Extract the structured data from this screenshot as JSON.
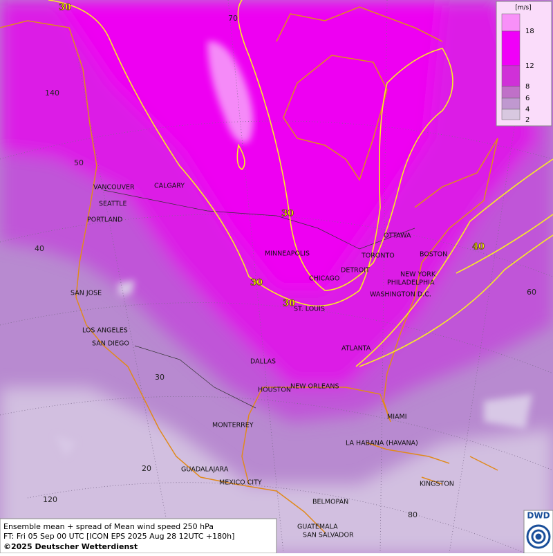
{
  "legend": {
    "unit": "[m/s]",
    "ticks": [
      18,
      12,
      8,
      6,
      4,
      2
    ]
  },
  "cities": [
    "VANCOUVER",
    "CALGARY",
    "SEATTLE",
    "PORTLAND",
    "MINNEAPOLIS",
    "OTTAWA",
    "TORONTO",
    "DETROIT",
    "BOSTON",
    "NEW YORK",
    "CHICAGO",
    "PHILADELPHIA",
    "SAN JOSE",
    "WASHINGTON D.C.",
    "ST. LOUIS",
    "LOS ANGELES",
    "SAN DIEGO",
    "ATLANTA",
    "DALLAS",
    "HOUSTON",
    "NEW ORLEANS",
    "MIAMI",
    "MONTERREY",
    "LA HABANA (HAVANA)",
    "GUADALAJARA",
    "MEXICO CITY",
    "KINGSTON",
    "BELMOPAN",
    "GUATEMALA",
    "SAN SALVADOR"
  ],
  "grid_labels": [
    "70",
    "140",
    "50",
    "40",
    "60",
    "30",
    "20",
    "120",
    "80"
  ],
  "contour_labels": [
    "30",
    "30",
    "30",
    "30",
    "40"
  ],
  "footer": {
    "line1": "Ensemble mean + spread of Mean wind speed 250 hPa",
    "line2": "FT: Fri 05 Sep 00 UTC [ICON EPS 2025 Aug 28 12UTC +180h]",
    "line3": "©2025 Deutscher Wetterdienst"
  },
  "logo": "DWD"
}
